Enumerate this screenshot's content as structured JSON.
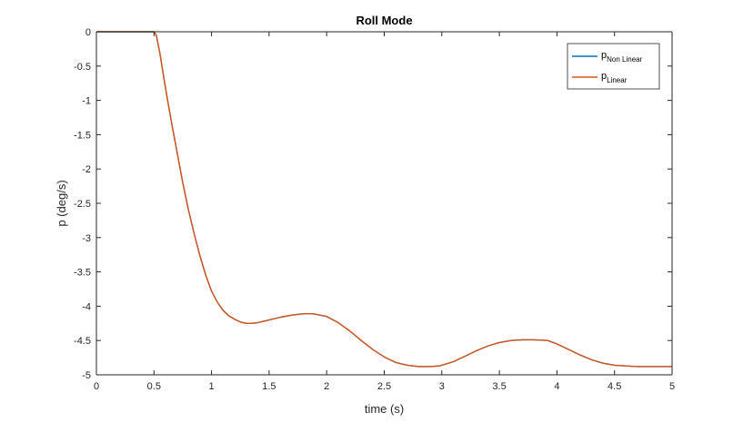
{
  "chart_data": {
    "type": "line",
    "title": "Roll Mode",
    "xlabel": "time (s)",
    "ylabel": "p (deg/s)",
    "xlim": [
      0,
      5
    ],
    "ylim": [
      -5,
      0
    ],
    "xticks": [
      0,
      0.5,
      1,
      1.5,
      2,
      2.5,
      3,
      3.5,
      4,
      4.5,
      5
    ],
    "yticks": [
      0,
      -0.5,
      -1,
      -1.5,
      -2,
      -2.5,
      -3,
      -3.5,
      -4,
      -4.5,
      -5
    ],
    "xtick_labels": [
      "0",
      "0.5",
      "1",
      "1.5",
      "2",
      "2.5",
      "3",
      "3.5",
      "4",
      "4.5",
      "5"
    ],
    "ytick_labels": [
      "0",
      "-0.5",
      "-1",
      "-1.5",
      "-2",
      "-2.5",
      "-3",
      "-3.5",
      "-4",
      "-4.5",
      "-5"
    ],
    "grid": false,
    "legend_position": "top-right",
    "series": [
      {
        "name_main": "p",
        "name_sub": "Non Linear",
        "color": "#0072BD",
        "x": [
          0,
          0.5,
          0.52,
          0.55,
          0.6,
          0.65,
          0.7,
          0.75,
          0.8,
          0.85,
          0.9,
          0.95,
          1.0,
          1.05,
          1.1,
          1.15,
          1.2,
          1.25,
          1.3,
          1.35,
          1.4,
          1.5,
          1.6,
          1.7,
          1.8,
          1.88,
          2.0,
          2.1,
          2.2,
          2.3,
          2.4,
          2.5,
          2.6,
          2.7,
          2.8,
          2.9,
          2.98,
          3.1,
          3.2,
          3.3,
          3.4,
          3.5,
          3.6,
          3.7,
          3.8,
          3.92,
          4.0,
          4.1,
          4.2,
          4.3,
          4.4,
          4.5,
          4.6,
          4.7,
          4.8,
          4.9,
          5.0
        ],
        "y": [
          0,
          0,
          -0.05,
          -0.3,
          -0.82,
          -1.3,
          -1.75,
          -2.2,
          -2.6,
          -2.95,
          -3.27,
          -3.55,
          -3.78,
          -3.94,
          -4.06,
          -4.14,
          -4.19,
          -4.23,
          -4.25,
          -4.25,
          -4.24,
          -4.2,
          -4.16,
          -4.13,
          -4.11,
          -4.11,
          -4.15,
          -4.24,
          -4.36,
          -4.5,
          -4.63,
          -4.74,
          -4.82,
          -4.86,
          -4.88,
          -4.88,
          -4.87,
          -4.81,
          -4.73,
          -4.65,
          -4.58,
          -4.53,
          -4.5,
          -4.49,
          -4.49,
          -4.5,
          -4.55,
          -4.63,
          -4.71,
          -4.78,
          -4.83,
          -4.86,
          -4.87,
          -4.88,
          -4.88,
          -4.88,
          -4.88
        ]
      },
      {
        "name_main": "p",
        "name_sub": "Linear",
        "color": "#D95319",
        "x": [
          0,
          0.5,
          0.52,
          0.55,
          0.6,
          0.65,
          0.7,
          0.75,
          0.8,
          0.85,
          0.9,
          0.95,
          1.0,
          1.05,
          1.1,
          1.15,
          1.2,
          1.25,
          1.3,
          1.35,
          1.4,
          1.5,
          1.6,
          1.7,
          1.8,
          1.88,
          2.0,
          2.1,
          2.2,
          2.3,
          2.4,
          2.5,
          2.6,
          2.7,
          2.8,
          2.9,
          2.98,
          3.1,
          3.2,
          3.3,
          3.4,
          3.5,
          3.6,
          3.7,
          3.8,
          3.92,
          4.0,
          4.1,
          4.2,
          4.3,
          4.4,
          4.5,
          4.6,
          4.7,
          4.8,
          4.9,
          5.0
        ],
        "y": [
          0,
          0,
          -0.05,
          -0.3,
          -0.82,
          -1.3,
          -1.75,
          -2.2,
          -2.6,
          -2.95,
          -3.27,
          -3.55,
          -3.78,
          -3.94,
          -4.06,
          -4.14,
          -4.19,
          -4.23,
          -4.25,
          -4.25,
          -4.24,
          -4.2,
          -4.16,
          -4.13,
          -4.11,
          -4.11,
          -4.15,
          -4.24,
          -4.36,
          -4.5,
          -4.63,
          -4.74,
          -4.82,
          -4.86,
          -4.88,
          -4.88,
          -4.87,
          -4.81,
          -4.73,
          -4.65,
          -4.58,
          -4.53,
          -4.5,
          -4.49,
          -4.49,
          -4.5,
          -4.55,
          -4.63,
          -4.71,
          -4.78,
          -4.83,
          -4.86,
          -4.87,
          -4.88,
          -4.88,
          -4.88,
          -4.88
        ]
      }
    ]
  }
}
